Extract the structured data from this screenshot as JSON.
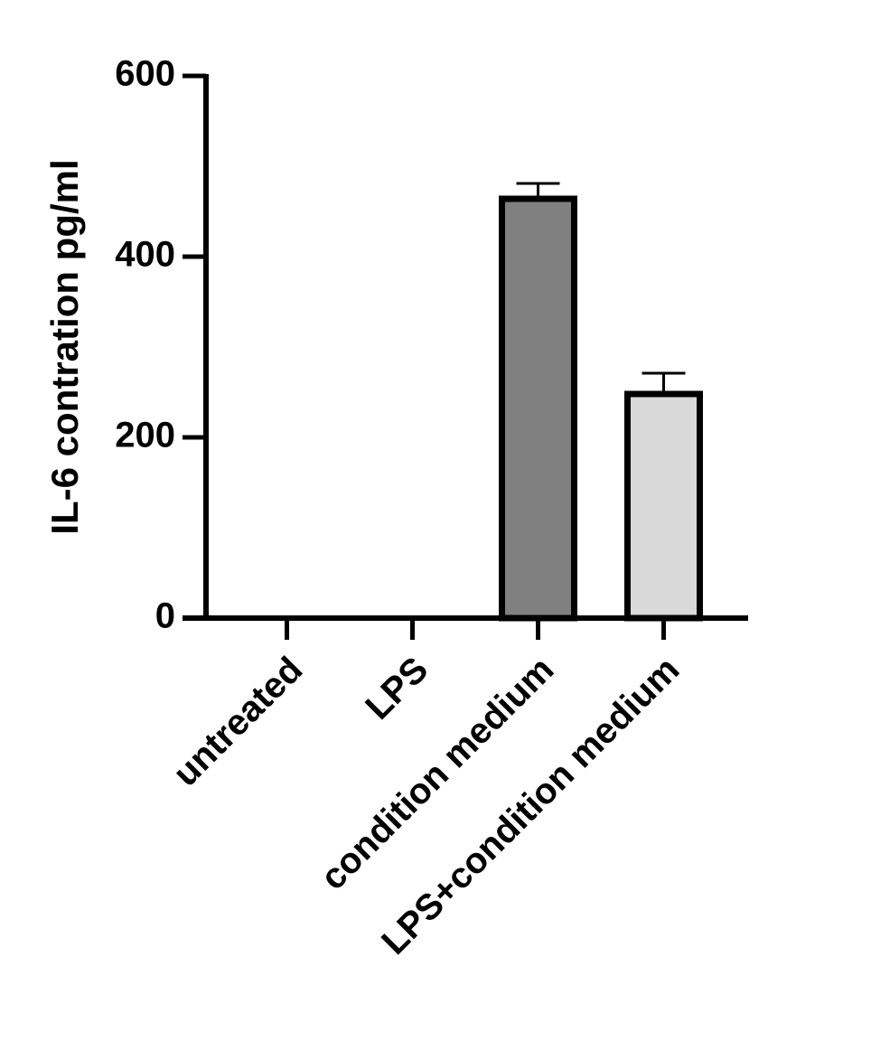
{
  "chart_data": {
    "type": "bar",
    "y_label": "IL-6 contration pg/ml",
    "categories": [
      "untreated",
      "LPS",
      "condition medium",
      "LPS+condition medium"
    ],
    "values": [
      0,
      0,
      464,
      248
    ],
    "errors": [
      0,
      0,
      17,
      23
    ],
    "colors": [
      "#808080",
      "#808080",
      "#808080",
      "#d9d9d9"
    ],
    "ylim": [
      0,
      600
    ],
    "yticks": [
      0,
      200,
      400,
      600
    ],
    "grid": false
  }
}
